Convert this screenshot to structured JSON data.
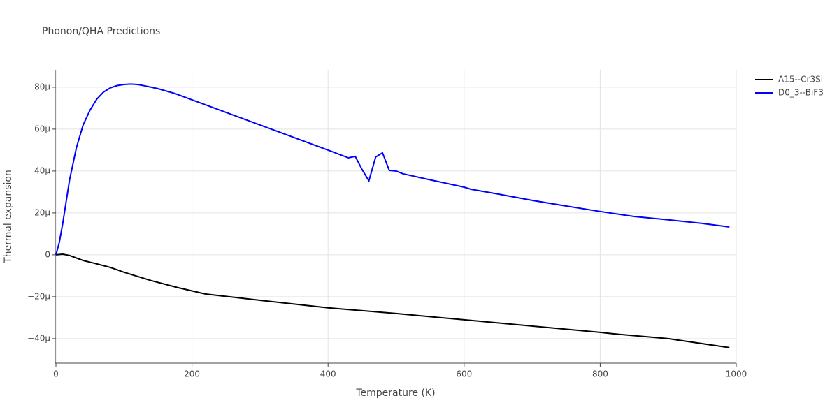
{
  "chart_data": {
    "type": "line",
    "title": "Phonon/QHA Predictions",
    "x_label": "Temperature (K)",
    "y_label": "Thermal expansion",
    "xlim": [
      0,
      1000
    ],
    "xticks": [
      0,
      200,
      400,
      600,
      800,
      1000
    ],
    "ylim": [
      -5.17e-05,
      8.83e-05
    ],
    "yticks": [
      {
        "value": -4e-05,
        "label": "−40μ"
      },
      {
        "value": -2e-05,
        "label": "−20μ"
      },
      0,
      {
        "value": 2e-05,
        "label": "20μ"
      },
      {
        "value": 4e-05,
        "label": "40μ"
      },
      {
        "value": 6e-05,
        "label": "60μ"
      },
      {
        "value": 8e-05,
        "label": "80μ"
      }
    ],
    "grid": true,
    "legend": "top-right",
    "series": [
      {
        "name": "A15--Cr3Si",
        "color": "#000000",
        "x": [
          0,
          10,
          20,
          30,
          40,
          60,
          80,
          100,
          140,
          180,
          220,
          300,
          400,
          500,
          600,
          700,
          800,
          820,
          900,
          990
        ],
        "values": [
          0,
          3e-07,
          -3e-07,
          -1.5e-06,
          -2.7e-06,
          -4.3e-06,
          -6e-06,
          -8.3e-06,
          -1.23e-05,
          -1.57e-05,
          -1.87e-05,
          -2.17e-05,
          -2.53e-05,
          -2.8e-05,
          -3.1e-05,
          -3.4e-05,
          -3.7e-05,
          -3.77e-05,
          -4e-05,
          -4.43e-05
        ]
      },
      {
        "name": "D0_3--BiF3",
        "color": "#0000ff",
        "x": [
          0,
          5,
          10,
          20,
          30,
          40,
          50,
          60,
          70,
          80,
          90,
          100,
          110,
          120,
          130,
          140,
          150,
          175,
          200,
          250,
          300,
          350,
          400,
          430,
          440,
          450,
          460,
          470,
          480,
          490,
          500,
          510,
          550,
          600,
          610,
          650,
          700,
          750,
          800,
          850,
          900,
          950,
          990
        ],
        "values": [
          0,
          6e-06,
          1.5e-05,
          3.57e-05,
          5.1e-05,
          6.2e-05,
          6.9e-05,
          7.43e-05,
          7.77e-05,
          7.97e-05,
          8.08e-05,
          8.13e-05,
          8.15e-05,
          8.13e-05,
          8.07e-05,
          8e-05,
          7.93e-05,
          7.7e-05,
          7.4e-05,
          6.8e-05,
          6.2e-05,
          5.6e-05,
          5e-05,
          4.63e-05,
          4.7e-05,
          4.07e-05,
          3.53e-05,
          4.67e-05,
          4.87e-05,
          4.03e-05,
          4e-05,
          3.87e-05,
          3.58e-05,
          3.23e-05,
          3.13e-05,
          2.9e-05,
          2.6e-05,
          2.33e-05,
          2.07e-05,
          1.83e-05,
          1.67e-05,
          1.5e-05,
          1.33e-05
        ]
      }
    ]
  }
}
